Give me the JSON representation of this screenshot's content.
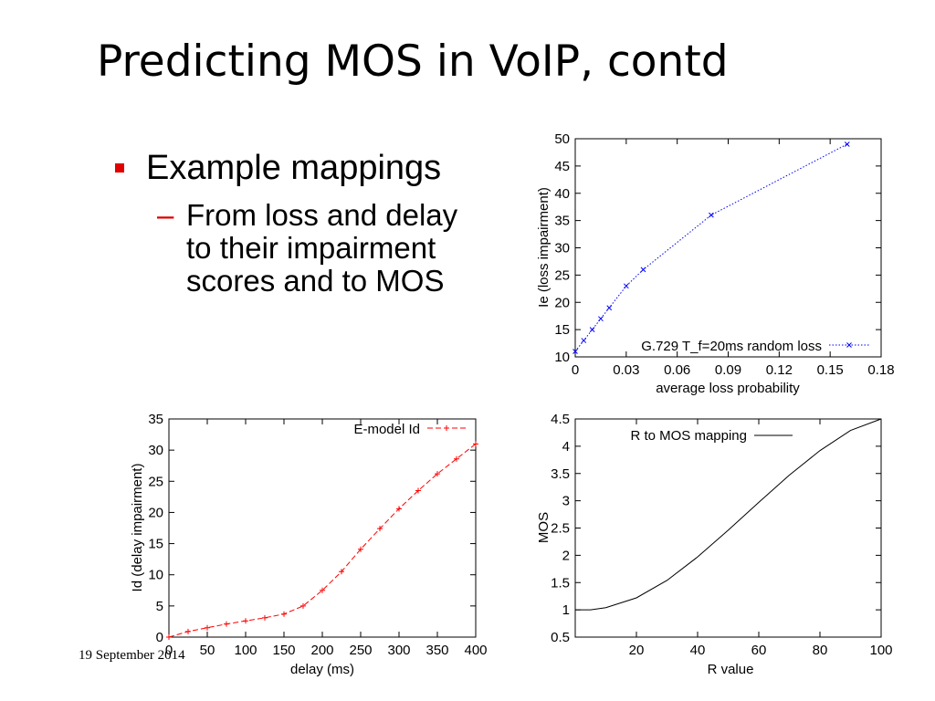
{
  "slide": {
    "title": "Predicting MOS in VoIP, contd",
    "bullet": "Example mappings",
    "sub_dash": "–",
    "sub_bullet": "From loss and delay to their impairment scores and to MOS",
    "footer": "19 September 2014"
  },
  "chart_data": [
    {
      "type": "line",
      "xlabel": "average loss probability",
      "ylabel": "Ie (loss impairment)",
      "xlim": [
        0,
        0.18
      ],
      "ylim": [
        10,
        50
      ],
      "xticks": [
        "0",
        "0.03",
        "0.06",
        "0.09",
        "0.12",
        "0.15",
        "0.18"
      ],
      "yticks": [
        "10",
        "15",
        "20",
        "25",
        "30",
        "35",
        "40",
        "45",
        "50"
      ],
      "legend_position": "bottom-right",
      "color": "#0000ff",
      "line_style": "dotted",
      "series": [
        {
          "name": "G.729 T_f=20ms random loss",
          "x": [
            0,
            0.005,
            0.01,
            0.015,
            0.02,
            0.03,
            0.04,
            0.08,
            0.16
          ],
          "y": [
            11,
            13,
            15,
            17,
            19,
            23,
            26,
            36,
            49
          ]
        }
      ]
    },
    {
      "type": "line",
      "xlabel": "delay (ms)",
      "ylabel": "Id (delay impairment)",
      "xlim": [
        0,
        400
      ],
      "ylim": [
        0,
        35
      ],
      "xticks": [
        "0",
        "50",
        "100",
        "150",
        "200",
        "250",
        "300",
        "350",
        "400"
      ],
      "yticks": [
        "0",
        "5",
        "10",
        "15",
        "20",
        "25",
        "30",
        "35"
      ],
      "legend_position": "top-right",
      "color": "#ff0000",
      "line_style": "dashed",
      "series": [
        {
          "name": "E-model Id",
          "x": [
            0,
            25,
            50,
            75,
            100,
            125,
            150,
            175,
            200,
            225,
            250,
            275,
            300,
            325,
            350,
            375,
            400
          ],
          "y": [
            0,
            0.9,
            1.5,
            2.1,
            2.6,
            3.1,
            3.7,
            5.0,
            7.5,
            10.5,
            14.1,
            17.4,
            20.6,
            23.5,
            26.2,
            28.6,
            31.0
          ]
        }
      ]
    },
    {
      "type": "line",
      "xlabel": "R value",
      "ylabel": "MOS",
      "xlim": [
        0,
        100
      ],
      "ylim": [
        0.5,
        4.5
      ],
      "xticks": [
        "20",
        "40",
        "60",
        "80",
        "100"
      ],
      "yticks": [
        "0.5",
        "1",
        "1.5",
        "2",
        "2.5",
        "3",
        "3.5",
        "4",
        "4.5"
      ],
      "legend_position": "top-left",
      "color": "#000000",
      "line_style": "solid",
      "series": [
        {
          "name": "R to MOS mapping",
          "x": [
            0,
            5,
            10,
            20,
            30,
            40,
            50,
            60,
            70,
            80,
            90,
            100
          ],
          "y": [
            1.0,
            1.0,
            1.04,
            1.22,
            1.54,
            1.97,
            2.46,
            2.97,
            3.47,
            3.92,
            4.29,
            4.5
          ]
        }
      ]
    }
  ]
}
